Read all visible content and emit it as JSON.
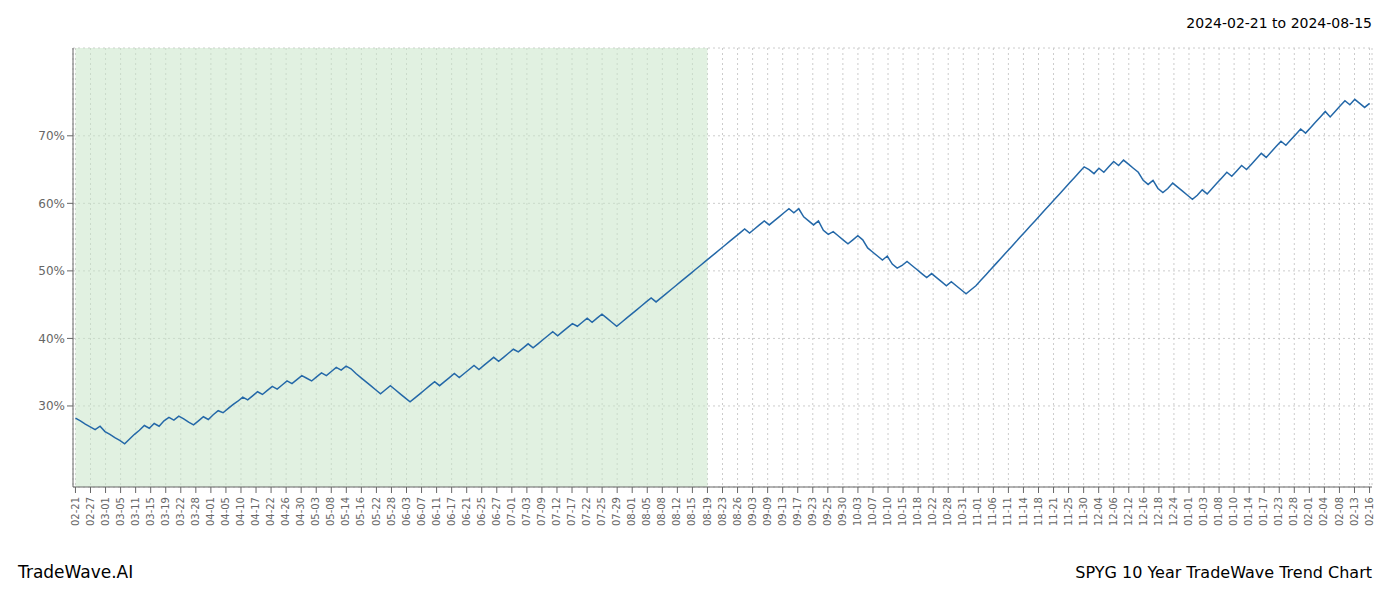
{
  "chart_data": {
    "type": "line",
    "annotations": [
      "2024-02-21 to 2024-08-15",
      "TradeWave.AI",
      "SPYG 10 Year TradeWave Trend Chart"
    ],
    "color": "#2468a8",
    "grid": true,
    "xlim": [
      -0.5,
      263.5
    ],
    "ylim": [
      18,
      83
    ],
    "yticks": [
      {
        "value": 30,
        "label": "30%"
      },
      {
        "value": 40,
        "label": "40%"
      },
      {
        "value": 50,
        "label": "50%"
      },
      {
        "value": 60,
        "label": "60%"
      },
      {
        "value": 70,
        "label": "70%"
      }
    ],
    "shaded_span": {
      "x": [
        0,
        128.44186
      ],
      "color": "#c8e6c8"
    },
    "xticks": [
      {
        "value": 0,
        "label": "02-21"
      },
      {
        "value": 3.05814,
        "label": "02-27"
      },
      {
        "value": 6.116279,
        "label": "03-01"
      },
      {
        "value": 9.174419,
        "label": "03-05"
      },
      {
        "value": 12.232558,
        "label": "03-11"
      },
      {
        "value": 15.290698,
        "label": "03-15"
      },
      {
        "value": 18.348837,
        "label": "03-19"
      },
      {
        "value": 21.406977,
        "label": "03-22"
      },
      {
        "value": 24.465116,
        "label": "03-28"
      },
      {
        "value": 27.523256,
        "label": "04-01"
      },
      {
        "value": 30.581395,
        "label": "04-05"
      },
      {
        "value": 33.639535,
        "label": "04-10"
      },
      {
        "value": 36.697674,
        "label": "04-17"
      },
      {
        "value": 39.755814,
        "label": "04-22"
      },
      {
        "value": 42.813953,
        "label": "04-26"
      },
      {
        "value": 45.872093,
        "label": "04-30"
      },
      {
        "value": 48.930233,
        "label": "05-03"
      },
      {
        "value": 51.988372,
        "label": "05-08"
      },
      {
        "value": 55.046512,
        "label": "05-14"
      },
      {
        "value": 58.104651,
        "label": "05-16"
      },
      {
        "value": 61.162791,
        "label": "05-22"
      },
      {
        "value": 64.22093,
        "label": "05-28"
      },
      {
        "value": 67.27907,
        "label": "06-03"
      },
      {
        "value": 70.337209,
        "label": "06-07"
      },
      {
        "value": 73.395349,
        "label": "06-11"
      },
      {
        "value": 76.453488,
        "label": "06-17"
      },
      {
        "value": 79.511628,
        "label": "06-21"
      },
      {
        "value": 82.569767,
        "label": "06-25"
      },
      {
        "value": 85.627907,
        "label": "06-27"
      },
      {
        "value": 88.686047,
        "label": "07-01"
      },
      {
        "value": 91.744186,
        "label": "07-03"
      },
      {
        "value": 94.802326,
        "label": "07-09"
      },
      {
        "value": 97.860465,
        "label": "07-12"
      },
      {
        "value": 100.918605,
        "label": "07-17"
      },
      {
        "value": 103.976744,
        "label": "07-22"
      },
      {
        "value": 107.034884,
        "label": "07-25"
      },
      {
        "value": 110.093023,
        "label": "07-29"
      },
      {
        "value": 113.151163,
        "label": "08-01"
      },
      {
        "value": 116.209302,
        "label": "08-05"
      },
      {
        "value": 119.267442,
        "label": "08-08"
      },
      {
        "value": 122.325581,
        "label": "08-12"
      },
      {
        "value": 125.383721,
        "label": "08-15"
      },
      {
        "value": 128.44186,
        "label": "08-19"
      },
      {
        "value": 131.5,
        "label": "08-23"
      },
      {
        "value": 134.55814,
        "label": "08-26"
      },
      {
        "value": 137.616279,
        "label": "09-03"
      },
      {
        "value": 140.674419,
        "label": "09-09"
      },
      {
        "value": 143.732558,
        "label": "09-13"
      },
      {
        "value": 146.790698,
        "label": "09-17"
      },
      {
        "value": 149.848837,
        "label": "09-23"
      },
      {
        "value": 152.906977,
        "label": "09-25"
      },
      {
        "value": 155.965116,
        "label": "09-30"
      },
      {
        "value": 159.023256,
        "label": "10-03"
      },
      {
        "value": 162.081395,
        "label": "10-07"
      },
      {
        "value": 165.139535,
        "label": "10-10"
      },
      {
        "value": 168.197674,
        "label": "10-15"
      },
      {
        "value": 171.255814,
        "label": "10-18"
      },
      {
        "value": 174.313953,
        "label": "10-22"
      },
      {
        "value": 177.372093,
        "label": "10-28"
      },
      {
        "value": 180.430233,
        "label": "10-31"
      },
      {
        "value": 183.488372,
        "label": "11-01"
      },
      {
        "value": 186.546512,
        "label": "11-06"
      },
      {
        "value": 189.604651,
        "label": "11-11"
      },
      {
        "value": 192.662791,
        "label": "11-14"
      },
      {
        "value": 195.72093,
        "label": "11-18"
      },
      {
        "value": 198.77907,
        "label": "11-21"
      },
      {
        "value": 201.837209,
        "label": "11-25"
      },
      {
        "value": 204.895349,
        "label": "11-30"
      },
      {
        "value": 207.953488,
        "label": "12-04"
      },
      {
        "value": 211.011628,
        "label": "12-06"
      },
      {
        "value": 214.069767,
        "label": "12-12"
      },
      {
        "value": 217.127907,
        "label": "12-16"
      },
      {
        "value": 220.186047,
        "label": "12-18"
      },
      {
        "value": 223.244186,
        "label": "12-24"
      },
      {
        "value": 226.302326,
        "label": "01-01"
      },
      {
        "value": 229.360465,
        "label": "01-03"
      },
      {
        "value": 232.418605,
        "label": "01-08"
      },
      {
        "value": 235.476744,
        "label": "01-10"
      },
      {
        "value": 238.534884,
        "label": "01-14"
      },
      {
        "value": 241.593023,
        "label": "01-17"
      },
      {
        "value": 244.651163,
        "label": "01-23"
      },
      {
        "value": 247.709302,
        "label": "01-28"
      },
      {
        "value": 250.767442,
        "label": "02-01"
      },
      {
        "value": 253.825581,
        "label": "02-04"
      },
      {
        "value": 256.883721,
        "label": "02-08"
      },
      {
        "value": 259.94186,
        "label": "02-13"
      },
      {
        "value": 263,
        "label": "02-16"
      }
    ],
    "x": [
      0,
      1,
      2,
      3,
      4,
      5,
      6,
      7,
      8,
      9,
      10,
      11,
      12,
      13,
      14,
      15,
      16,
      17,
      18,
      19,
      20,
      21,
      22,
      23,
      24,
      25,
      26,
      27,
      28,
      29,
      30,
      31,
      32,
      33,
      34,
      35,
      36,
      37,
      38,
      39,
      40,
      41,
      42,
      43,
      44,
      45,
      46,
      47,
      48,
      49,
      50,
      51,
      52,
      53,
      54,
      55,
      56,
      57,
      58,
      59,
      60,
      61,
      62,
      63,
      64,
      65,
      66,
      67,
      68,
      69,
      70,
      71,
      72,
      73,
      74,
      75,
      76,
      77,
      78,
      79,
      80,
      81,
      82,
      83,
      84,
      85,
      86,
      87,
      88,
      89,
      90,
      91,
      92,
      93,
      94,
      95,
      96,
      97,
      98,
      99,
      100,
      101,
      102,
      103,
      104,
      105,
      106,
      107,
      108,
      109,
      110,
      111,
      112,
      113,
      114,
      115,
      116,
      117,
      118,
      119,
      120,
      121,
      122,
      123,
      124,
      125,
      126,
      127,
      128,
      129,
      130,
      131,
      132,
      133,
      134,
      135,
      136,
      137,
      138,
      139,
      140,
      141,
      142,
      143,
      144,
      145,
      146,
      147,
      148,
      149,
      150,
      151,
      152,
      153,
      154,
      155,
      156,
      157,
      158,
      159,
      160,
      161,
      162,
      163,
      164,
      165,
      166,
      167,
      168,
      169,
      170,
      171,
      172,
      173,
      174,
      175,
      176,
      177,
      178,
      179,
      180,
      181,
      182,
      183,
      184,
      185,
      186,
      187,
      188,
      189,
      190,
      191,
      192,
      193,
      194,
      195,
      196,
      197,
      198,
      199,
      200,
      201,
      202,
      203,
      204,
      205,
      206,
      207,
      208,
      209,
      210,
      211,
      212,
      213,
      214,
      215,
      216,
      217,
      218,
      219,
      220,
      221,
      222,
      223,
      224,
      225,
      226,
      227,
      228,
      229,
      230,
      231,
      232,
      233,
      234,
      235,
      236,
      237,
      238,
      239,
      240,
      241,
      242,
      243,
      244,
      245,
      246,
      247,
      248,
      249,
      250,
      251,
      252,
      253,
      254,
      255,
      256,
      257,
      258,
      259,
      260,
      261,
      262,
      263
    ],
    "values": [
      28.2,
      27.8,
      27.3,
      26.9,
      26.5,
      27.0,
      26.2,
      25.8,
      25.3,
      24.9,
      24.4,
      25.1,
      25.8,
      26.4,
      27.1,
      26.7,
      27.4,
      27.0,
      27.8,
      28.3,
      27.9,
      28.5,
      28.1,
      27.6,
      27.2,
      27.8,
      28.4,
      28.0,
      28.7,
      29.3,
      29.0,
      29.6,
      30.2,
      30.7,
      31.3,
      30.9,
      31.5,
      32.1,
      31.7,
      32.3,
      32.9,
      32.5,
      33.1,
      33.7,
      33.3,
      33.9,
      34.5,
      34.1,
      33.7,
      34.3,
      34.9,
      34.5,
      35.1,
      35.7,
      35.3,
      35.9,
      35.5,
      34.8,
      34.2,
      33.6,
      33.0,
      32.4,
      31.8,
      32.4,
      33.0,
      32.4,
      31.8,
      31.2,
      30.6,
      31.2,
      31.8,
      32.4,
      33.0,
      33.6,
      33.0,
      33.6,
      34.2,
      34.8,
      34.2,
      34.8,
      35.4,
      36.0,
      35.4,
      36.0,
      36.6,
      37.2,
      36.6,
      37.2,
      37.8,
      38.4,
      38.0,
      38.6,
      39.2,
      38.6,
      39.2,
      39.8,
      40.4,
      41.0,
      40.4,
      41.0,
      41.6,
      42.2,
      41.8,
      42.4,
      43.0,
      42.4,
      43.0,
      43.6,
      43.0,
      42.4,
      41.8,
      42.4,
      43.0,
      43.6,
      44.2,
      44.8,
      45.4,
      46.0,
      45.4,
      46.0,
      46.6,
      47.2,
      47.8,
      48.4,
      49.0,
      49.6,
      50.2,
      50.8,
      51.4,
      52.0,
      52.6,
      53.2,
      53.8,
      54.4,
      55.0,
      55.6,
      56.2,
      55.6,
      56.2,
      56.8,
      57.4,
      56.8,
      57.4,
      58.0,
      58.6,
      59.2,
      58.6,
      59.2,
      58.0,
      57.4,
      56.8,
      57.4,
      56.0,
      55.4,
      55.8,
      55.2,
      54.6,
      54.0,
      54.6,
      55.2,
      54.6,
      53.4,
      52.8,
      52.2,
      51.6,
      52.2,
      51.0,
      50.4,
      50.8,
      51.4,
      50.8,
      50.2,
      49.6,
      49.0,
      49.6,
      49.0,
      48.4,
      47.8,
      48.4,
      47.8,
      47.2,
      46.6,
      47.2,
      47.8,
      48.6,
      49.4,
      50.2,
      51.0,
      51.8,
      52.6,
      53.4,
      54.2,
      55.0,
      55.8,
      56.6,
      57.4,
      58.2,
      59.0,
      59.8,
      60.6,
      61.4,
      62.2,
      63.0,
      63.8,
      64.6,
      65.4,
      65.0,
      64.4,
      65.2,
      64.6,
      65.4,
      66.2,
      65.6,
      66.4,
      65.8,
      65.2,
      64.6,
      63.4,
      62.8,
      63.4,
      62.2,
      61.6,
      62.2,
      63.0,
      62.4,
      61.8,
      61.2,
      60.6,
      61.2,
      62.0,
      61.4,
      62.2,
      63.0,
      63.8,
      64.6,
      64.0,
      64.8,
      65.6,
      65.0,
      65.8,
      66.6,
      67.4,
      66.8,
      67.6,
      68.4,
      69.2,
      68.6,
      69.4,
      70.2,
      71.0,
      70.4,
      71.2,
      72.0,
      72.8,
      73.6,
      72.8,
      73.6,
      74.4,
      75.2,
      74.6,
      75.4,
      74.8,
      74.2,
      74.8
    ]
  }
}
